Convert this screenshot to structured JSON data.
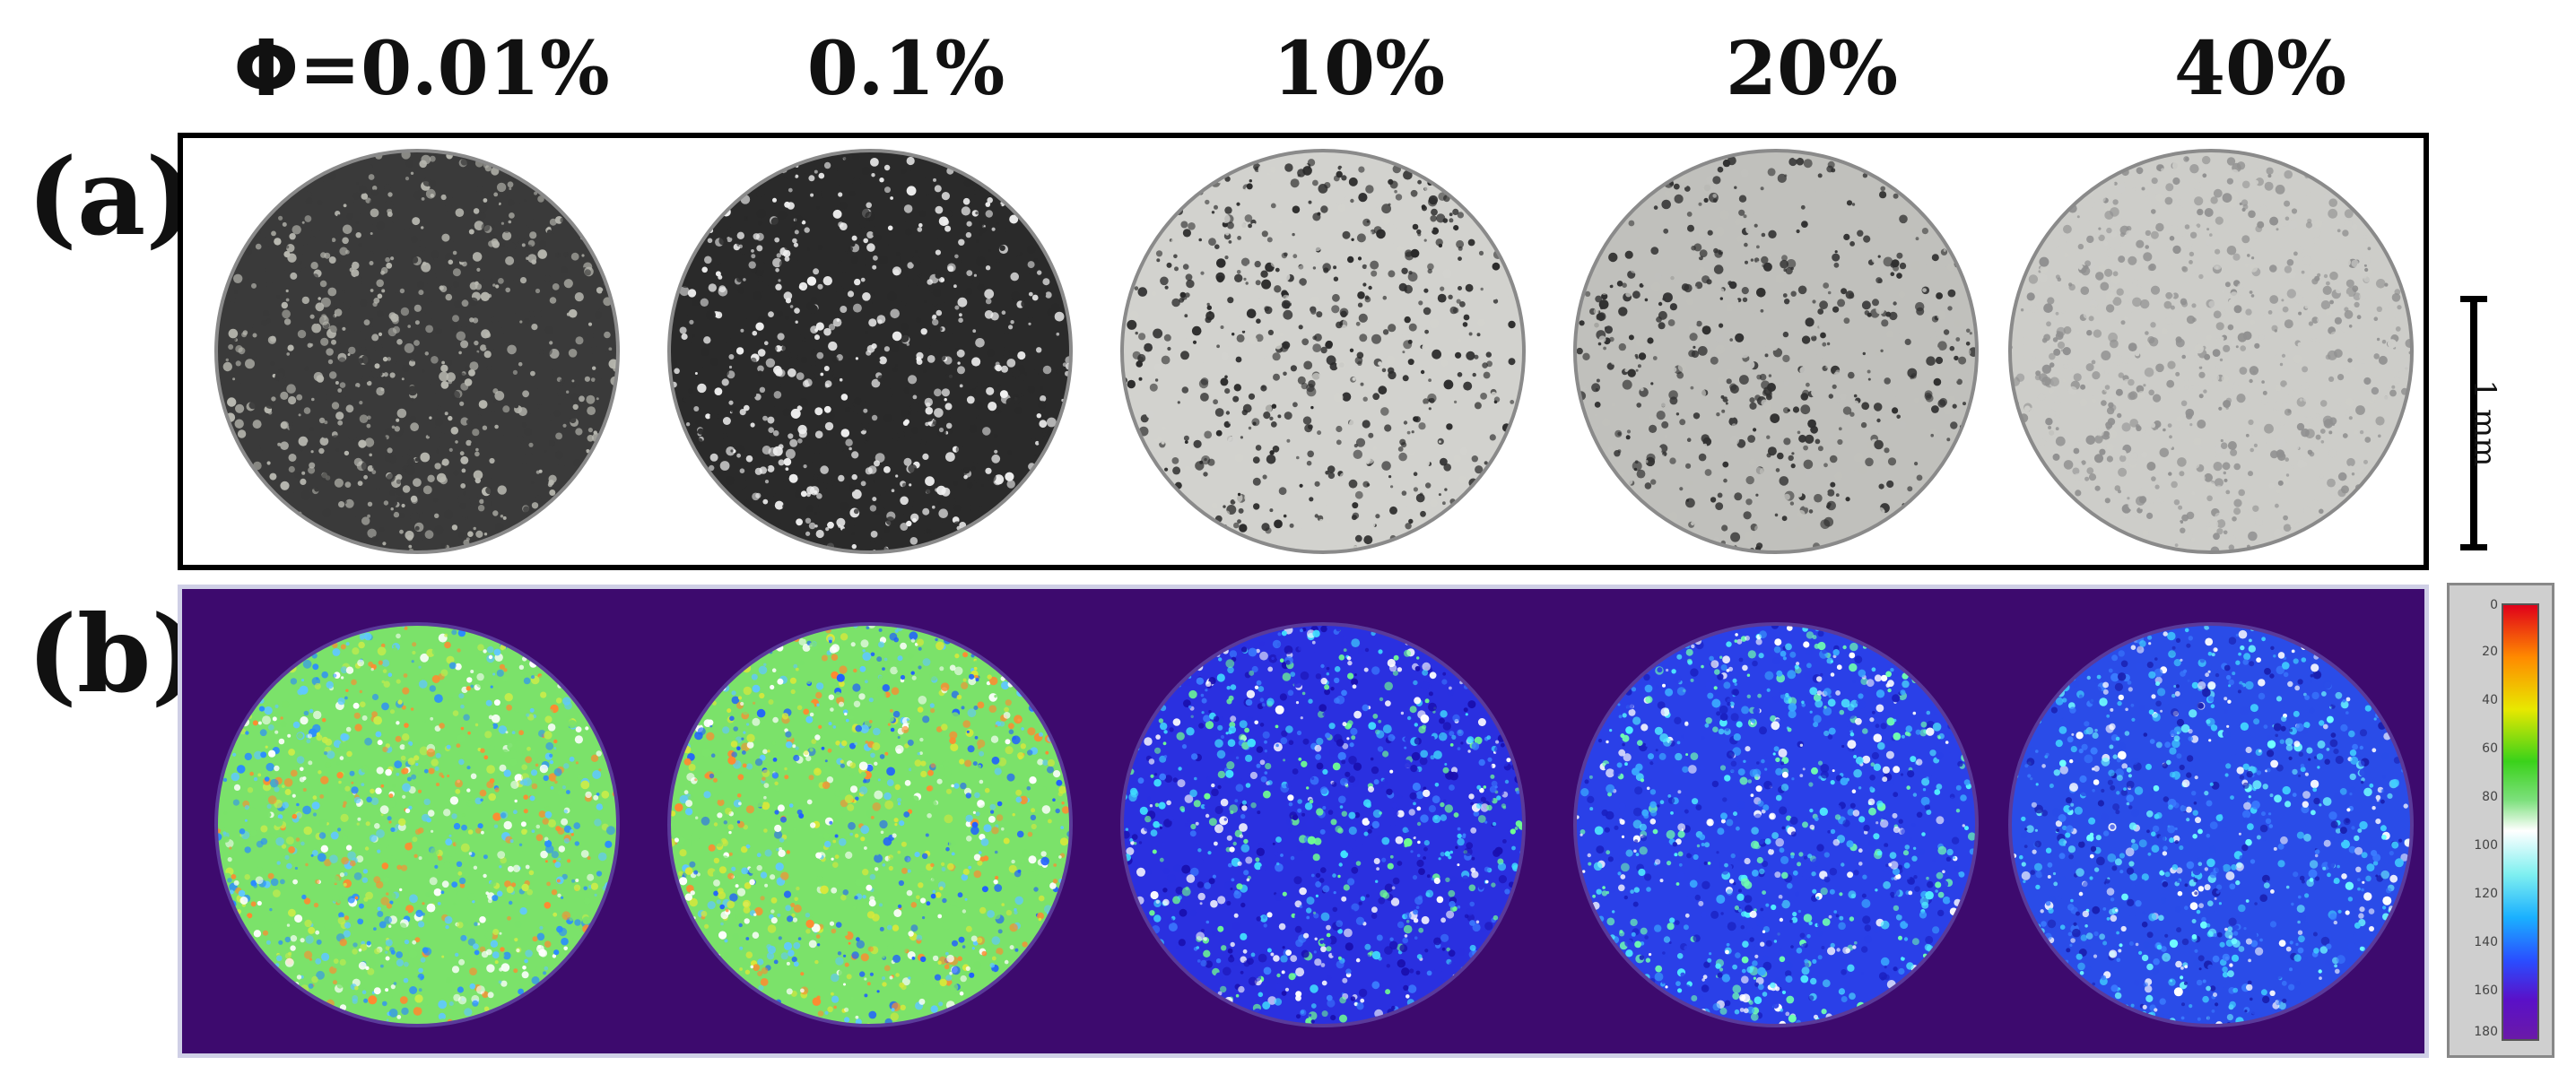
{
  "header": {
    "phi_symbol": "Φ",
    "phi_equals": "=0.01%",
    "labels": [
      "0.1%",
      "10%",
      "20%",
      "40%"
    ]
  },
  "panels": {
    "a_label": "(a)",
    "b_label": "(b)"
  },
  "scale_bar": {
    "text": "1 mm"
  },
  "colorbar": {
    "ticks": [
      "0",
      "20",
      "40",
      "60",
      "80",
      "100",
      "120",
      "140",
      "160",
      "180"
    ],
    "colors_top_to_bottom": [
      "#e0001a",
      "#ff8a00",
      "#e8e800",
      "#3ad21a",
      "#ffffff",
      "#7ff0f0",
      "#1ab0ff",
      "#2a4dff",
      "#5a10c8",
      "#6a1aa8"
    ]
  },
  "samples": [
    {
      "concentration": "0.01%",
      "photo_base": "#3a3a3a",
      "photo_speck": "#b8b8b0",
      "map_colors": [
        "#7be26a",
        "#c8ec4a",
        "#ffffff",
        "#60c8ff",
        "#ff8a30",
        "#2a8cff"
      ]
    },
    {
      "concentration": "0.1%",
      "photo_base": "#2a2a2a",
      "photo_speck": "#f0f0f0",
      "map_colors": [
        "#7be26a",
        "#d8e83a",
        "#ffffff",
        "#ff8a30",
        "#60c8ff",
        "#2060ff"
      ]
    },
    {
      "concentration": "10%",
      "photo_base": "#d2d2ce",
      "photo_speck": "#2a2a2a",
      "map_colors": [
        "#2a30e0",
        "#3a7cff",
        "#40e0ff",
        "#ffffff",
        "#1a10b0",
        "#70ff90"
      ]
    },
    {
      "concentration": "20%",
      "photo_base": "#c0c0bc",
      "photo_speck": "#303030",
      "map_colors": [
        "#2a40e8",
        "#3aa8ff",
        "#50f0ff",
        "#ffffff",
        "#1a20c0",
        "#70ffb0"
      ]
    },
    {
      "concentration": "40%",
      "photo_base": "#cdcdc9",
      "photo_speck": "#909090",
      "map_colors": [
        "#2a4ce8",
        "#3a7cff",
        "#40d0ff",
        "#1a20b0",
        "#70ffff",
        "#ffffff"
      ]
    }
  ]
}
